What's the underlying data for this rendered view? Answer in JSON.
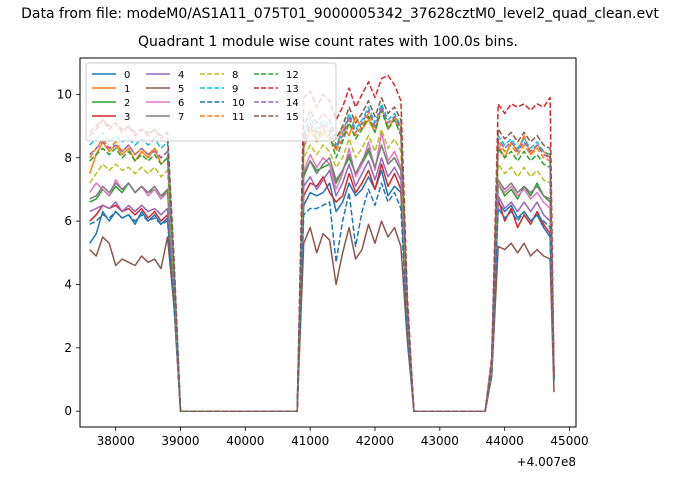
{
  "figure": {
    "suptitle": "Data from file: modeM0/AS1A11_075T01_9000005342_37628cztM0_level2_quad_clean.evt",
    "title": "Quadrant 1 module wise count rates with 100.0s bins."
  },
  "chart_data": {
    "type": "line",
    "title": "Quadrant 1 module wise count rates with 100.0s bins.",
    "xlabel": "",
    "ylabel": "",
    "x_offset_label": "+4.007e8",
    "xlim": [
      37450,
      45100
    ],
    "ylim": [
      -0.5,
      11.15
    ],
    "xticks": [
      38000,
      39000,
      40000,
      41000,
      42000,
      43000,
      44000,
      45000
    ],
    "yticks": [
      0,
      2,
      4,
      6,
      8,
      10
    ],
    "grid": false,
    "legend": {
      "location": "upper-left",
      "columns": 4
    },
    "segments": {
      "seg1_x": [
        37600,
        37700,
        37800,
        37900,
        38000,
        38100,
        38200,
        38300,
        38400,
        38500,
        38600,
        38700,
        38800,
        38900,
        39000
      ],
      "gap1_x": [
        39100,
        39200,
        39300,
        39400,
        39500,
        39600,
        39700,
        39800,
        39900,
        40000,
        40100,
        40200,
        40300,
        40400,
        40500,
        40600,
        40700
      ],
      "seg2_x": [
        40800,
        40900,
        41000,
        41100,
        41200,
        41300,
        41400,
        41500,
        41600,
        41700,
        41800,
        41900,
        42000,
        42100,
        42200,
        42300,
        42400,
        42500,
        42600
      ],
      "gap2_x": [
        42700,
        42800,
        42900,
        43000,
        43100,
        43200,
        43300,
        43400,
        43500,
        43600
      ],
      "seg3_x": [
        43700,
        43800,
        43900,
        44000,
        44100,
        44200,
        44300,
        44400,
        44500,
        44600,
        44700,
        44760
      ]
    },
    "series": [
      {
        "name": "0",
        "color": "#1f77b4",
        "dash": "solid",
        "seg1": [
          5.3,
          5.6,
          6.3,
          6.0,
          6.3,
          6.1,
          6.2,
          5.9,
          6.3,
          6.0,
          6.2,
          5.9,
          6.1,
          3.5,
          0.0
        ],
        "seg2": [
          0.0,
          6.5,
          6.9,
          6.8,
          6.9,
          7.2,
          6.3,
          6.6,
          7.2,
          6.8,
          7.0,
          7.4,
          7.0,
          7.6,
          6.8,
          7.1,
          6.9,
          2.5,
          0.0
        ],
        "seg3": [
          0.0,
          1.2,
          6.6,
          6.3,
          6.5,
          6.1,
          6.3,
          6.0,
          6.2,
          5.8,
          5.5,
          1.0
        ]
      },
      {
        "name": "1",
        "color": "#ff7f0e",
        "dash": "solid",
        "seg1": [
          7.5,
          8.1,
          8.5,
          8.2,
          8.4,
          8.1,
          8.3,
          7.9,
          8.2,
          8.0,
          8.3,
          7.8,
          8.0,
          4.3,
          0.0
        ],
        "seg2": [
          0.0,
          8.3,
          8.9,
          8.5,
          8.8,
          8.6,
          8.3,
          9.0,
          8.7,
          9.3,
          8.9,
          9.2,
          8.8,
          9.6,
          8.9,
          9.3,
          9.0,
          3.2,
          0.0
        ],
        "seg3": [
          0.0,
          1.5,
          8.4,
          8.0,
          8.5,
          8.2,
          8.7,
          8.1,
          8.4,
          8.2,
          8.0,
          1.1
        ]
      },
      {
        "name": "2",
        "color": "#2ca02c",
        "dash": "solid",
        "seg1": [
          6.6,
          6.7,
          7.0,
          6.8,
          7.1,
          6.9,
          7.2,
          6.9,
          7.1,
          6.9,
          7.0,
          6.7,
          7.0,
          3.8,
          0.0
        ],
        "seg2": [
          0.0,
          7.4,
          7.9,
          7.6,
          7.7,
          7.8,
          7.2,
          7.6,
          8.0,
          7.5,
          7.8,
          8.2,
          7.7,
          8.4,
          7.8,
          8.0,
          7.6,
          2.8,
          0.0
        ],
        "seg3": [
          0.0,
          1.3,
          7.2,
          6.8,
          7.0,
          6.7,
          7.1,
          6.8,
          7.2,
          6.8,
          6.6,
          1.0
        ]
      },
      {
        "name": "3",
        "color": "#d62728",
        "dash": "solid",
        "seg1": [
          6.0,
          6.2,
          6.5,
          6.4,
          6.5,
          6.3,
          6.4,
          6.2,
          6.4,
          6.1,
          6.3,
          6.0,
          6.2,
          3.6,
          0.0
        ],
        "seg2": [
          0.0,
          6.8,
          7.2,
          7.1,
          7.4,
          6.9,
          6.6,
          6.8,
          7.5,
          6.9,
          7.2,
          7.6,
          7.0,
          7.8,
          7.1,
          7.5,
          7.0,
          2.6,
          0.0
        ],
        "seg3": [
          0.0,
          1.2,
          6.7,
          6.0,
          6.4,
          5.8,
          6.2,
          5.9,
          6.3,
          5.9,
          5.6,
          1.0
        ]
      },
      {
        "name": "4",
        "color": "#9467bd",
        "dash": "solid",
        "seg1": [
          6.3,
          6.4,
          6.5,
          6.4,
          6.6,
          6.3,
          6.5,
          6.3,
          6.5,
          6.3,
          6.4,
          6.2,
          6.4,
          3.7,
          0.0
        ],
        "seg2": [
          0.0,
          7.1,
          7.4,
          7.0,
          7.3,
          7.6,
          6.8,
          7.2,
          7.8,
          7.1,
          7.5,
          7.9,
          7.3,
          8.0,
          7.4,
          7.7,
          7.3,
          2.7,
          0.0
        ],
        "seg3": [
          0.0,
          1.2,
          6.8,
          6.4,
          6.6,
          6.3,
          6.6,
          6.3,
          6.6,
          6.2,
          6.0,
          1.0
        ]
      },
      {
        "name": "5",
        "color": "#8c564b",
        "dash": "solid",
        "seg1": [
          5.1,
          4.9,
          5.5,
          5.3,
          4.6,
          4.8,
          4.7,
          4.6,
          4.9,
          4.7,
          4.8,
          4.5,
          5.5,
          3.3,
          0.0
        ],
        "seg2": [
          0.0,
          5.3,
          5.8,
          5.0,
          5.6,
          5.4,
          4.0,
          5.0,
          5.8,
          4.8,
          5.1,
          5.9,
          5.3,
          6.0,
          5.5,
          5.8,
          5.2,
          2.2,
          0.0
        ],
        "seg3": [
          0.0,
          1.1,
          5.2,
          5.1,
          5.3,
          5.0,
          5.3,
          4.9,
          5.1,
          4.9,
          4.8,
          0.6
        ]
      },
      {
        "name": "6",
        "color": "#e377c2",
        "dash": "solid",
        "seg1": [
          6.9,
          7.2,
          7.0,
          6.8,
          7.3,
          7.0,
          7.2,
          6.9,
          7.1,
          6.8,
          7.0,
          6.7,
          6.9,
          3.9,
          0.0
        ],
        "seg2": [
          0.0,
          7.6,
          8.1,
          7.7,
          8.0,
          7.8,
          7.0,
          7.5,
          8.3,
          7.4,
          7.8,
          8.5,
          7.6,
          8.8,
          7.9,
          8.2,
          7.7,
          2.8,
          0.0
        ],
        "seg3": [
          0.0,
          1.3,
          7.2,
          6.9,
          7.1,
          6.8,
          7.0,
          6.7,
          6.9,
          6.6,
          6.4,
          1.0
        ]
      },
      {
        "name": "7",
        "color": "#7f7f7f",
        "dash": "solid",
        "seg1": [
          6.7,
          6.8,
          7.1,
          6.9,
          7.2,
          7.0,
          7.2,
          6.9,
          7.1,
          6.9,
          7.1,
          6.8,
          7.0,
          3.9,
          0.0
        ],
        "seg2": [
          0.0,
          7.5,
          7.9,
          7.5,
          7.8,
          8.0,
          7.3,
          7.6,
          8.1,
          7.5,
          7.9,
          8.3,
          7.7,
          8.4,
          7.8,
          8.0,
          7.6,
          2.8,
          0.0
        ],
        "seg3": [
          0.0,
          1.3,
          7.3,
          7.0,
          7.2,
          6.9,
          7.1,
          6.9,
          7.1,
          6.8,
          6.7,
          1.0
        ]
      },
      {
        "name": "8",
        "color": "#bcbd22",
        "dash": "dashed",
        "seg1": [
          7.2,
          7.5,
          7.8,
          7.6,
          7.8,
          7.6,
          7.7,
          7.5,
          7.7,
          7.5,
          7.7,
          7.4,
          7.6,
          4.1,
          0.0
        ],
        "seg2": [
          0.0,
          8.0,
          8.4,
          8.1,
          8.4,
          8.2,
          7.7,
          8.0,
          8.6,
          8.0,
          8.3,
          8.7,
          8.2,
          8.9,
          8.3,
          8.6,
          8.2,
          3.0,
          0.0
        ],
        "seg3": [
          0.0,
          1.4,
          7.8,
          7.5,
          7.7,
          7.4,
          7.7,
          7.4,
          7.6,
          7.3,
          7.2,
          1.0
        ]
      },
      {
        "name": "9",
        "color": "#17becf",
        "dash": "dashed",
        "seg1": [
          8.4,
          8.6,
          8.8,
          8.5,
          8.7,
          8.5,
          8.6,
          8.4,
          8.6,
          8.4,
          8.6,
          8.3,
          8.5,
          4.6,
          0.0
        ],
        "seg2": [
          0.0,
          8.7,
          9.3,
          8.9,
          9.2,
          9.0,
          8.4,
          8.8,
          9.4,
          8.9,
          9.2,
          9.6,
          9.1,
          9.7,
          9.2,
          9.4,
          9.0,
          3.3,
          0.0
        ],
        "seg3": [
          0.0,
          1.6,
          8.7,
          8.4,
          8.6,
          8.3,
          8.6,
          8.3,
          8.5,
          8.2,
          8.1,
          1.1
        ]
      },
      {
        "name": "10",
        "color": "#1f77b4",
        "dash": "dashed",
        "seg1": [
          5.9,
          6.0,
          6.2,
          6.1,
          6.3,
          6.1,
          6.2,
          6.0,
          6.2,
          6.0,
          6.1,
          5.9,
          6.0,
          3.5,
          0.0
        ],
        "seg2": [
          0.0,
          6.2,
          6.4,
          6.4,
          6.5,
          6.6,
          4.7,
          6.0,
          6.9,
          5.2,
          6.3,
          7.0,
          6.5,
          7.2,
          6.6,
          6.9,
          6.4,
          2.4,
          0.0
        ],
        "seg3": [
          0.0,
          1.2,
          6.4,
          6.1,
          6.3,
          6.0,
          6.3,
          6.0,
          6.2,
          6.0,
          5.8,
          0.9
        ]
      },
      {
        "name": "11",
        "color": "#ff7f0e",
        "dash": "dashed",
        "seg1": [
          8.0,
          8.3,
          8.6,
          8.3,
          8.5,
          8.2,
          8.4,
          8.1,
          8.3,
          8.1,
          8.3,
          8.0,
          8.2,
          4.4,
          0.0
        ],
        "seg2": [
          0.0,
          8.6,
          9.1,
          8.7,
          9.0,
          8.8,
          8.2,
          8.6,
          9.2,
          8.7,
          9.0,
          9.4,
          8.9,
          9.5,
          9.0,
          9.2,
          8.8,
          3.2,
          0.0
        ],
        "seg3": [
          0.0,
          1.5,
          8.5,
          8.2,
          8.4,
          8.1,
          8.4,
          8.1,
          8.3,
          8.0,
          7.9,
          1.1
        ]
      },
      {
        "name": "12",
        "color": "#2ca02c",
        "dash": "dashed",
        "seg1": [
          7.9,
          8.1,
          8.3,
          8.1,
          8.3,
          8.0,
          8.2,
          7.9,
          8.1,
          7.9,
          8.1,
          7.8,
          8.0,
          4.3,
          0.0
        ],
        "seg2": [
          0.0,
          8.5,
          9.0,
          8.6,
          8.9,
          8.7,
          8.0,
          8.5,
          9.1,
          8.6,
          8.9,
          9.3,
          8.8,
          9.5,
          8.9,
          9.2,
          8.7,
          3.1,
          0.0
        ],
        "seg3": [
          0.0,
          1.5,
          8.3,
          8.0,
          8.2,
          7.9,
          8.2,
          7.9,
          8.1,
          7.8,
          7.7,
          1.0
        ]
      },
      {
        "name": "13",
        "color": "#d62728",
        "dash": "dashed",
        "seg1": [
          8.7,
          8.9,
          9.2,
          8.9,
          9.1,
          8.8,
          9.0,
          8.7,
          8.9,
          8.7,
          8.9,
          8.6,
          8.8,
          4.8,
          0.0
        ],
        "seg2": [
          0.0,
          9.9,
          10.1,
          9.6,
          10.0,
          9.8,
          9.2,
          9.6,
          10.2,
          9.6,
          10.0,
          10.4,
          9.9,
          10.5,
          10.6,
          10.3,
          9.8,
          3.6,
          0.0
        ],
        "seg3": [
          0.0,
          1.7,
          9.7,
          9.4,
          9.7,
          9.6,
          9.7,
          9.5,
          9.7,
          9.6,
          9.9,
          1.2
        ]
      },
      {
        "name": "14",
        "color": "#9467bd",
        "dash": "dashed",
        "seg1": [
          8.1,
          8.3,
          8.5,
          8.3,
          8.4,
          8.2,
          8.4,
          8.1,
          8.3,
          8.1,
          8.2,
          8.0,
          8.2,
          4.4,
          0.0
        ],
        "seg2": [
          0.0,
          8.6,
          9.1,
          8.8,
          9.1,
          8.9,
          8.3,
          8.7,
          9.3,
          8.8,
          9.1,
          9.5,
          9.0,
          9.6,
          9.1,
          9.3,
          8.9,
          3.2,
          0.0
        ],
        "seg3": [
          0.0,
          1.5,
          8.6,
          8.3,
          8.5,
          8.2,
          8.5,
          8.2,
          8.4,
          8.1,
          8.0,
          1.1
        ]
      },
      {
        "name": "15",
        "color": "#8c564b",
        "dash": "dashed",
        "seg1": [
          8.8,
          9.0,
          9.2,
          9.0,
          9.1,
          8.9,
          9.0,
          8.8,
          8.9,
          8.8,
          8.9,
          8.7,
          8.8,
          4.8,
          0.0
        ],
        "seg2": [
          0.0,
          9.0,
          9.5,
          9.1,
          9.4,
          9.2,
          8.6,
          9.0,
          9.6,
          9.1,
          9.4,
          9.8,
          9.3,
          9.9,
          9.4,
          9.6,
          9.2,
          3.4,
          0.0
        ],
        "seg3": [
          0.0,
          1.6,
          8.9,
          8.6,
          8.8,
          8.5,
          8.8,
          8.5,
          8.7,
          8.4,
          8.3,
          1.1
        ]
      }
    ]
  }
}
